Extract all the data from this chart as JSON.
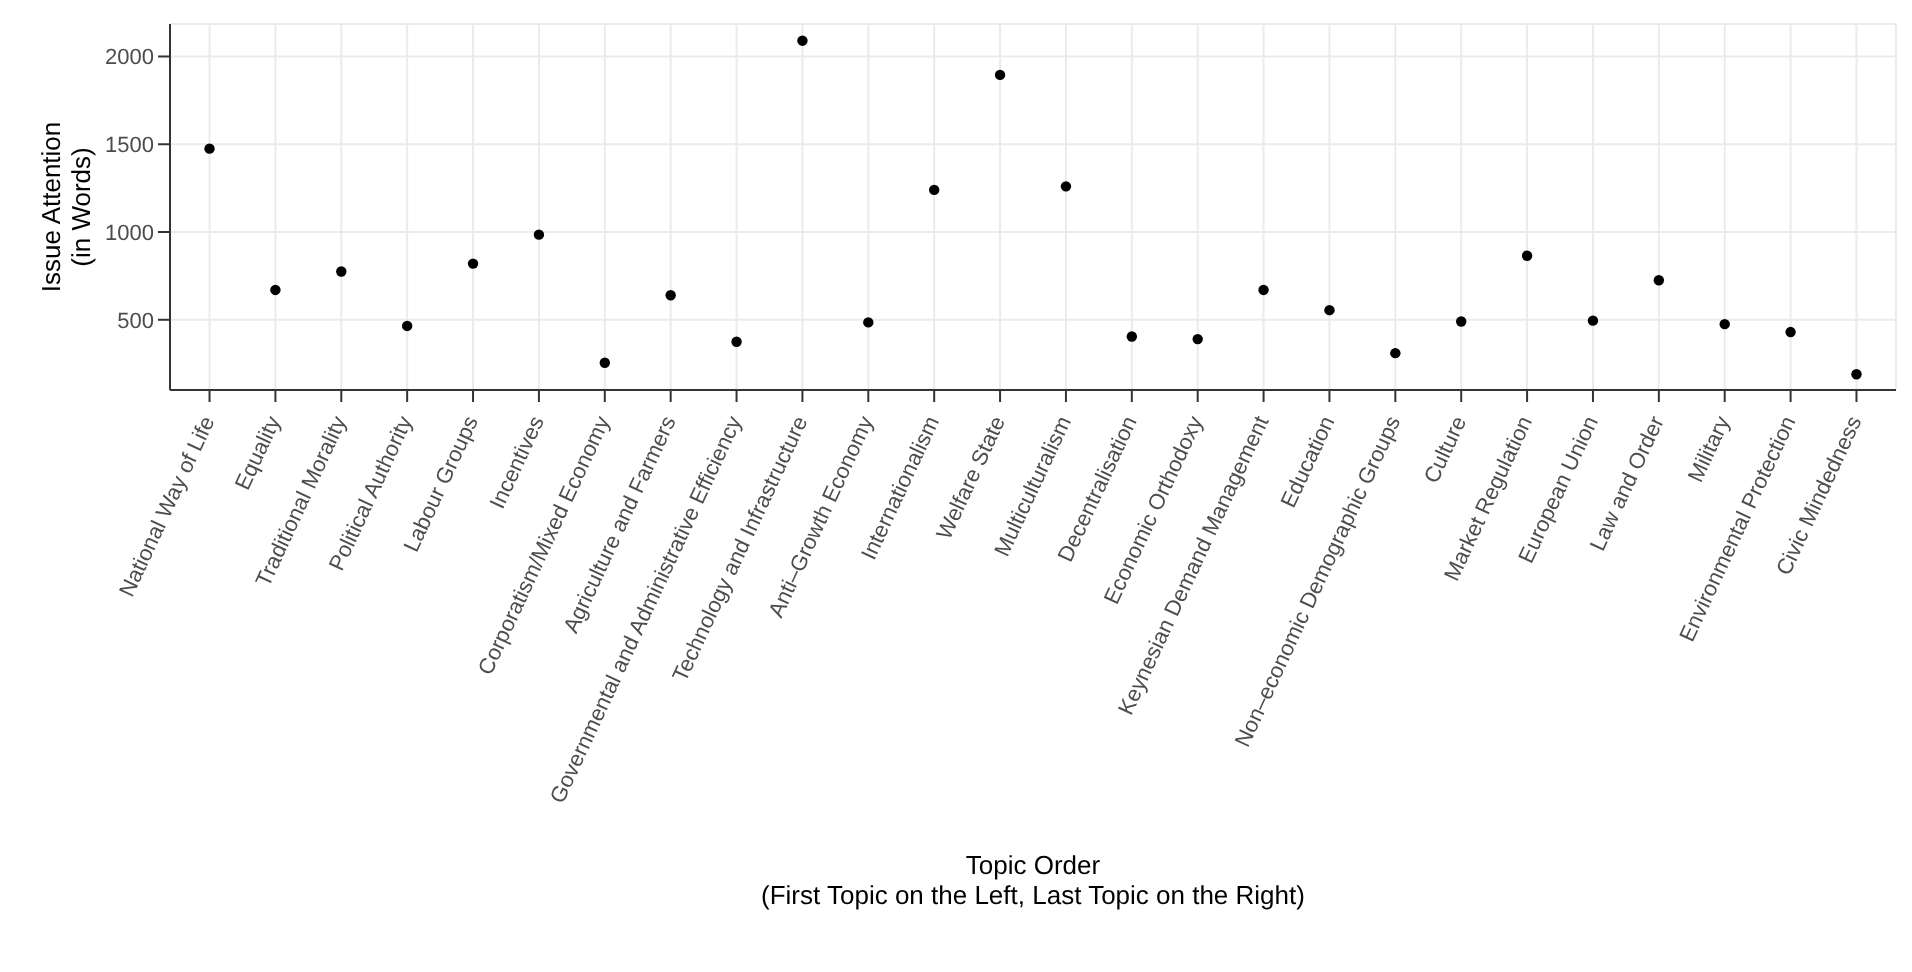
{
  "chart_data": {
    "type": "scatter",
    "xlabel": "Topic Order\n(First Topic on the Left, Last Topic on the Right)",
    "ylabel": "Issue Attention\n(in Words)",
    "categories": [
      "National Way of Life",
      "Equality",
      "Traditional Morality",
      "Political Authority",
      "Labour Groups",
      "Incentives",
      "Corporatism/Mixed Economy",
      "Agriculture and Farmers",
      "Governmental and Administrative Efficiency",
      "Technology and Infrastructure",
      "Anti–Growth Economy",
      "Internationalism",
      "Welfare State",
      "Multiculturalism",
      "Decentralisation",
      "Economic Orthodoxy",
      "Keynesian Demand Management",
      "Education",
      "Non–economic Demographic Groups",
      "Culture",
      "Market Regulation",
      "European Union",
      "Law and Order",
      "Military",
      "Environmental Protection",
      "Civic Mindedness"
    ],
    "series": [
      {
        "color": "#000000",
        "values": [
          1475,
          670,
          775,
          465,
          820,
          985,
          255,
          640,
          375,
          2090,
          485,
          1240,
          1895,
          1260,
          405,
          390,
          670,
          555,
          310,
          490,
          865,
          495,
          725,
          475,
          430,
          190
        ]
      }
    ],
    "ylim": [
      100,
      2185
    ],
    "yticks": [
      500,
      1000,
      1500,
      2000
    ],
    "grid": true,
    "marker": "circle",
    "legend": false
  }
}
